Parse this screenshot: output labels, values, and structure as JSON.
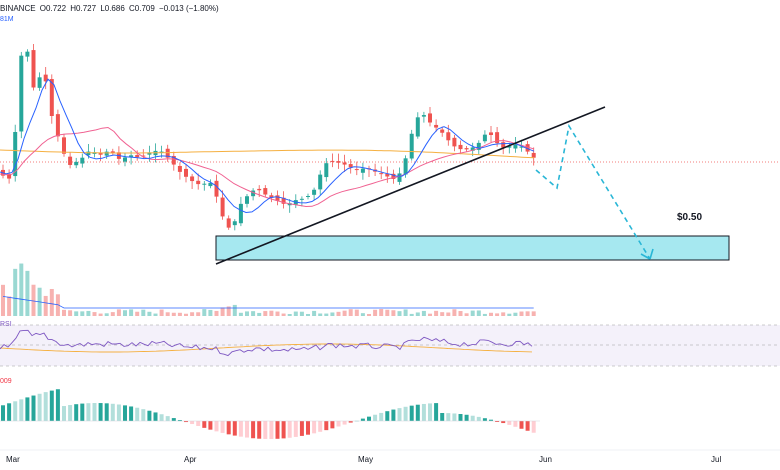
{
  "header": {
    "exchange": "BINANCE",
    "open": "O0.722",
    "high": "H0.727",
    "low": "L0.686",
    "close": "C0.709",
    "change": "−0.013 (−1.80%)"
  },
  "panes": {
    "volume_tag": "81M",
    "rsi_tag": "RSI",
    "macd_tag": "009"
  },
  "annotation": {
    "target_label": "$0.50"
  },
  "x_axis": [
    "Mar",
    "Apr",
    "May",
    "Jun",
    "Jul"
  ],
  "colors": {
    "up": "#26a69a",
    "down": "#ef5350",
    "zone_fill": "#a6e8f0",
    "projection": "#29b6d6",
    "ma_short": "#2962ff",
    "ma_mid": "#f06292",
    "ma_long": "#f5b041",
    "rsi": "#7e57c2"
  }
}
